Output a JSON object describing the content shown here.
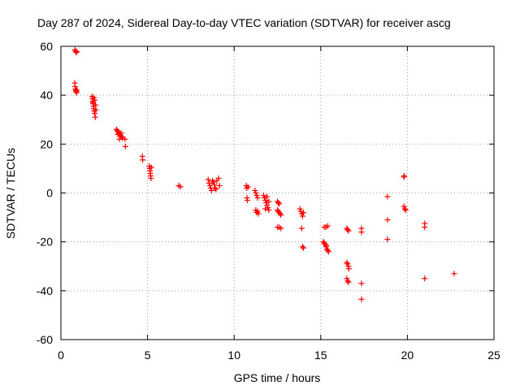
{
  "chart_data": {
    "type": "scatter",
    "title": "Day 287 of 2024, Sidereal Day-to-day VTEC variation (SDTVAR) for receiver ascg",
    "xlabel": "GPS time / hours",
    "ylabel": "SDTVAR / TECUs",
    "xlim": [
      0,
      25
    ],
    "ylim": [
      -60,
      60
    ],
    "xticks": [
      0,
      5,
      10,
      15,
      20,
      25
    ],
    "yticks": [
      -60,
      -40,
      -20,
      0,
      20,
      40,
      60
    ],
    "grid": true,
    "marker": "+",
    "color": "#ff0000",
    "series": [
      {
        "name": "SDTVAR",
        "points": [
          [
            0.8,
            58.5
          ],
          [
            0.85,
            58.0
          ],
          [
            0.88,
            57.5
          ],
          [
            0.92,
            57.8
          ],
          [
            0.8,
            45.0
          ],
          [
            0.82,
            43.5
          ],
          [
            0.84,
            42.5
          ],
          [
            0.86,
            42.0
          ],
          [
            0.88,
            41.5
          ],
          [
            0.9,
            41.0
          ],
          [
            0.92,
            42.0
          ],
          [
            1.8,
            39.5
          ],
          [
            1.82,
            38.5
          ],
          [
            1.84,
            37.5
          ],
          [
            1.86,
            36.5
          ],
          [
            1.88,
            35.5
          ],
          [
            1.9,
            34.5
          ],
          [
            1.92,
            33.5
          ],
          [
            1.95,
            32.5
          ],
          [
            1.98,
            31.0
          ],
          [
            1.85,
            37.0
          ],
          [
            1.95,
            38.0
          ],
          [
            2.0,
            36.0
          ],
          [
            2.02,
            34.0
          ],
          [
            1.9,
            39.0
          ],
          [
            3.2,
            26.0
          ],
          [
            3.25,
            25.5
          ],
          [
            3.3,
            25.0
          ],
          [
            3.35,
            24.5
          ],
          [
            3.4,
            24.0
          ],
          [
            3.45,
            23.5
          ],
          [
            3.5,
            23.0
          ],
          [
            3.55,
            22.5
          ],
          [
            3.28,
            24.0
          ],
          [
            3.38,
            22.0
          ],
          [
            3.48,
            24.5
          ],
          [
            3.7,
            22.0
          ],
          [
            3.72,
            19.0
          ],
          [
            4.7,
            15.0
          ],
          [
            4.72,
            13.5
          ],
          [
            5.1,
            11.0
          ],
          [
            5.12,
            10.0
          ],
          [
            5.14,
            9.0
          ],
          [
            5.16,
            8.0
          ],
          [
            5.18,
            7.0
          ],
          [
            5.2,
            6.0
          ],
          [
            5.22,
            10.5
          ],
          [
            6.8,
            3.0
          ],
          [
            6.9,
            2.5
          ],
          [
            8.5,
            5.5
          ],
          [
            8.55,
            4.0
          ],
          [
            8.6,
            3.0
          ],
          [
            8.65,
            2.0
          ],
          [
            8.7,
            1.0
          ],
          [
            8.75,
            5.0
          ],
          [
            8.8,
            4.5
          ],
          [
            8.85,
            3.5
          ],
          [
            8.9,
            2.0
          ],
          [
            8.95,
            1.5
          ],
          [
            9.0,
            5.0
          ],
          [
            9.1,
            6.0
          ],
          [
            9.15,
            3.0
          ],
          [
            10.7,
            3.0
          ],
          [
            10.72,
            2.0
          ],
          [
            10.74,
            -2.0
          ],
          [
            10.76,
            -3.0
          ],
          [
            10.8,
            2.5
          ],
          [
            11.2,
            1.0
          ],
          [
            11.25,
            0.0
          ],
          [
            11.3,
            -1.0
          ],
          [
            11.35,
            -2.0
          ],
          [
            11.25,
            -7.0
          ],
          [
            11.3,
            -8.0
          ],
          [
            11.35,
            -7.5
          ],
          [
            11.4,
            -8.5
          ],
          [
            11.7,
            -1.0
          ],
          [
            11.75,
            -2.0
          ],
          [
            11.8,
            -3.0
          ],
          [
            11.85,
            -4.0
          ],
          [
            11.9,
            -5.0
          ],
          [
            11.95,
            -6.0
          ],
          [
            12.0,
            -7.0
          ],
          [
            11.8,
            -6.5
          ],
          [
            11.9,
            -1.5
          ],
          [
            12.0,
            -3.5
          ],
          [
            12.5,
            -3.5
          ],
          [
            12.55,
            -4.0
          ],
          [
            12.6,
            -4.5
          ],
          [
            12.5,
            -7.0
          ],
          [
            12.55,
            -7.5
          ],
          [
            12.6,
            -8.0
          ],
          [
            12.65,
            -8.5
          ],
          [
            12.7,
            -9.0
          ],
          [
            12.5,
            -14.0
          ],
          [
            12.6,
            -14.0
          ],
          [
            12.7,
            -14.5
          ],
          [
            13.8,
            -6.5
          ],
          [
            13.85,
            -7.5
          ],
          [
            13.9,
            -8.5
          ],
          [
            13.95,
            -9.5
          ],
          [
            14.0,
            -8.0
          ],
          [
            13.9,
            -14.5
          ],
          [
            13.95,
            -22.0
          ],
          [
            14.0,
            -22.5
          ],
          [
            15.2,
            -14.0
          ],
          [
            15.3,
            -14.0
          ],
          [
            15.4,
            -13.5
          ],
          [
            15.15,
            -20.0
          ],
          [
            15.2,
            -20.5
          ],
          [
            15.25,
            -21.0
          ],
          [
            15.3,
            -22.0
          ],
          [
            15.35,
            -23.0
          ],
          [
            15.4,
            -23.5
          ],
          [
            15.45,
            -24.0
          ],
          [
            15.32,
            -21.5
          ],
          [
            16.5,
            -14.5
          ],
          [
            16.55,
            -15.0
          ],
          [
            16.6,
            -15.5
          ],
          [
            16.5,
            -28.5
          ],
          [
            16.55,
            -29.0
          ],
          [
            16.6,
            -30.0
          ],
          [
            16.62,
            -31.0
          ],
          [
            16.5,
            -35.0
          ],
          [
            16.55,
            -36.0
          ],
          [
            16.6,
            -36.5
          ],
          [
            17.35,
            -14.5
          ],
          [
            17.35,
            -16.0
          ],
          [
            17.35,
            -37.0
          ],
          [
            17.35,
            -43.5
          ],
          [
            18.85,
            -1.5
          ],
          [
            18.85,
            -11.0
          ],
          [
            18.85,
            -19.0
          ],
          [
            19.8,
            6.5
          ],
          [
            19.82,
            7.0
          ],
          [
            19.8,
            -5.5
          ],
          [
            19.85,
            -6.5
          ],
          [
            19.9,
            -7.0
          ],
          [
            21.0,
            -12.5
          ],
          [
            21.0,
            -14.0
          ],
          [
            21.0,
            -35.0
          ],
          [
            22.7,
            -33.0
          ]
        ]
      }
    ]
  }
}
